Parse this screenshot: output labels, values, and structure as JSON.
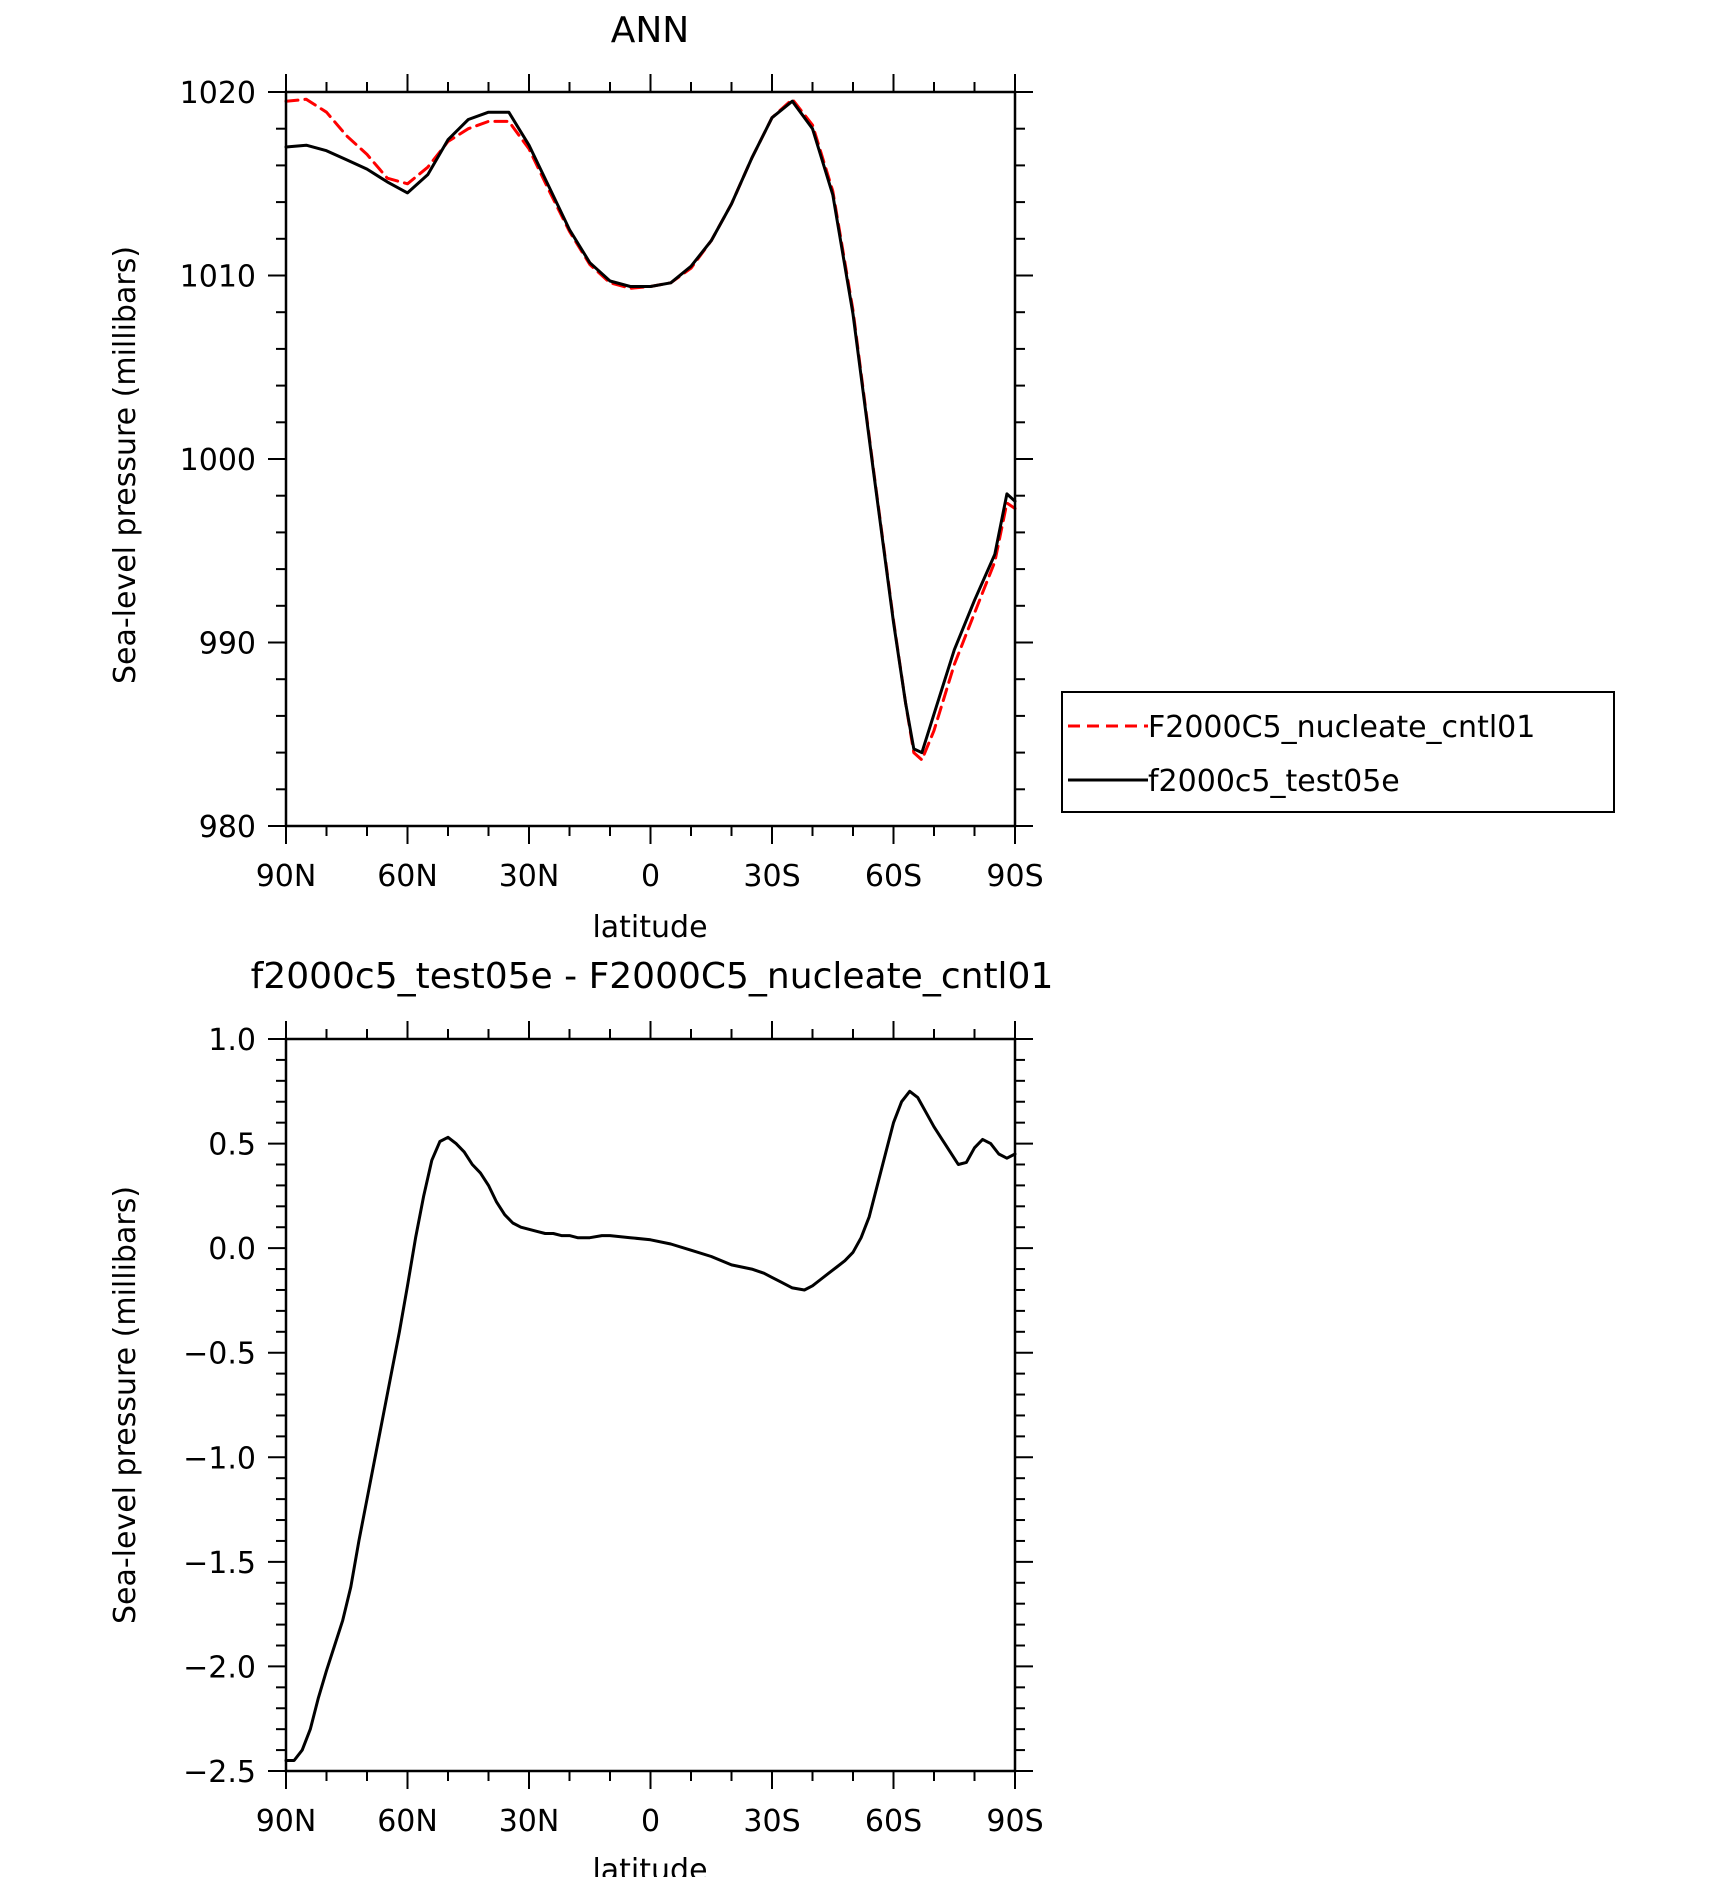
{
  "chart_data": [
    {
      "type": "line",
      "title": "ANN",
      "xlabel": "latitude",
      "ylabel": "Sea-level pressure (millibars)",
      "xlim": [
        90,
        -90
      ],
      "ylim": [
        980,
        1020
      ],
      "x_ticks": [
        {
          "value": 90,
          "label": "90N"
        },
        {
          "value": 60,
          "label": "60N"
        },
        {
          "value": 30,
          "label": "30N"
        },
        {
          "value": 0,
          "label": "0"
        },
        {
          "value": -30,
          "label": "30S"
        },
        {
          "value": -60,
          "label": "60S"
        },
        {
          "value": -90,
          "label": "90S"
        }
      ],
      "y_ticks": [
        {
          "value": 980,
          "label": "980"
        },
        {
          "value": 990,
          "label": "990"
        },
        {
          "value": 1000,
          "label": "1000"
        },
        {
          "value": 1010,
          "label": "1010"
        },
        {
          "value": 1020,
          "label": "1020"
        }
      ],
      "x": [
        90,
        85,
        80,
        75,
        70,
        65,
        60,
        55,
        50,
        45,
        40,
        35,
        30,
        25,
        20,
        15,
        10,
        5,
        0,
        -5,
        -10,
        -15,
        -20,
        -25,
        -30,
        -35,
        -40,
        -45,
        -50,
        -55,
        -60,
        -63,
        -65,
        -67,
        -70,
        -75,
        -80,
        -85,
        -88,
        -90
      ],
      "series": [
        {
          "name": "F2000C5_nucleate_cntl01",
          "color": "#ff0000",
          "dash": "dashed",
          "values": [
            1019.5,
            1019.6,
            1018.9,
            1017.6,
            1016.6,
            1015.3,
            1015.0,
            1015.9,
            1017.3,
            1018.0,
            1018.4,
            1018.4,
            1016.9,
            1014.6,
            1012.4,
            1010.6,
            1009.6,
            1009.3,
            1009.4,
            1009.6,
            1010.4,
            1011.9,
            1013.9,
            1016.4,
            1018.6,
            1019.6,
            1018.2,
            1014.6,
            1008.1,
            999.5,
            991.2,
            986.7,
            984.0,
            983.6,
            985.2,
            988.8,
            991.6,
            994.4,
            997.6,
            997.3
          ]
        },
        {
          "name": "f2000c5_test05e",
          "color": "#000000",
          "dash": "solid",
          "values": [
            1017.0,
            1017.1,
            1016.8,
            1016.3,
            1015.8,
            1015.1,
            1014.5,
            1015.5,
            1017.4,
            1018.5,
            1018.9,
            1018.9,
            1017.1,
            1014.8,
            1012.5,
            1010.7,
            1009.7,
            1009.4,
            1009.4,
            1009.6,
            1010.5,
            1011.9,
            1013.9,
            1016.4,
            1018.6,
            1019.5,
            1018.0,
            1014.4,
            1007.9,
            999.4,
            991.1,
            986.7,
            984.2,
            984.0,
            986.1,
            989.6,
            992.3,
            994.8,
            998.1,
            997.7
          ]
        }
      ],
      "legend": {
        "position": "right",
        "entries": [
          "F2000C5_nucleate_cntl01",
          "f2000c5_test05e"
        ]
      }
    },
    {
      "type": "line",
      "title": "f2000c5_test05e - F2000C5_nucleate_cntl01",
      "xlabel": "latitude",
      "ylabel": "Sea-level pressure (millibars)",
      "xlim": [
        90,
        -90
      ],
      "ylim": [
        -2.5,
        1.0
      ],
      "x_ticks": [
        {
          "value": 90,
          "label": "90N"
        },
        {
          "value": 60,
          "label": "60N"
        },
        {
          "value": 30,
          "label": "30N"
        },
        {
          "value": 0,
          "label": "0"
        },
        {
          "value": -30,
          "label": "30S"
        },
        {
          "value": -60,
          "label": "60S"
        },
        {
          "value": -90,
          "label": "90S"
        }
      ],
      "y_ticks": [
        {
          "value": -2.5,
          "label": "−2.5"
        },
        {
          "value": -2.0,
          "label": "−2.0"
        },
        {
          "value": -1.5,
          "label": "−1.5"
        },
        {
          "value": -1.0,
          "label": "−1.0"
        },
        {
          "value": -0.5,
          "label": "−0.5"
        },
        {
          "value": 0.0,
          "label": "0.0"
        },
        {
          "value": 0.5,
          "label": "0.5"
        },
        {
          "value": 1.0,
          "label": "1.0"
        }
      ],
      "x": [
        90,
        88,
        86,
        84,
        82,
        80,
        78,
        76,
        74,
        72,
        70,
        68,
        66,
        64,
        62,
        60,
        58,
        56,
        54,
        52,
        50,
        48,
        46,
        44,
        42,
        40,
        38,
        36,
        34,
        32,
        30,
        28,
        26,
        24,
        22,
        20,
        18,
        15,
        12,
        10,
        5,
        0,
        -5,
        -10,
        -15,
        -20,
        -25,
        -28,
        -30,
        -32,
        -35,
        -38,
        -40,
        -42,
        -44,
        -46,
        -48,
        -50,
        -52,
        -54,
        -56,
        -58,
        -60,
        -62,
        -64,
        -66,
        -68,
        -70,
        -72,
        -74,
        -76,
        -78,
        -80,
        -82,
        -84,
        -86,
        -88,
        -90
      ],
      "series": [
        {
          "name": "f2000c5_test05e - F2000C5_nucleate_cntl01",
          "color": "#000000",
          "dash": "solid",
          "values": [
            -2.45,
            -2.45,
            -2.4,
            -2.3,
            -2.15,
            -2.02,
            -1.9,
            -1.78,
            -1.62,
            -1.4,
            -1.2,
            -1.0,
            -0.8,
            -0.6,
            -0.4,
            -0.18,
            0.05,
            0.25,
            0.42,
            0.51,
            0.53,
            0.5,
            0.46,
            0.4,
            0.36,
            0.3,
            0.22,
            0.16,
            0.12,
            0.1,
            0.09,
            0.08,
            0.07,
            0.07,
            0.06,
            0.06,
            0.05,
            0.05,
            0.06,
            0.06,
            0.05,
            0.04,
            0.02,
            -0.01,
            -0.04,
            -0.08,
            -0.1,
            -0.12,
            -0.14,
            -0.16,
            -0.19,
            -0.2,
            -0.18,
            -0.15,
            -0.12,
            -0.09,
            -0.06,
            -0.02,
            0.05,
            0.15,
            0.3,
            0.45,
            0.6,
            0.7,
            0.75,
            0.72,
            0.65,
            0.58,
            0.52,
            0.46,
            0.4,
            0.41,
            0.48,
            0.52,
            0.5,
            0.45,
            0.43,
            0.45
          ]
        }
      ]
    }
  ]
}
